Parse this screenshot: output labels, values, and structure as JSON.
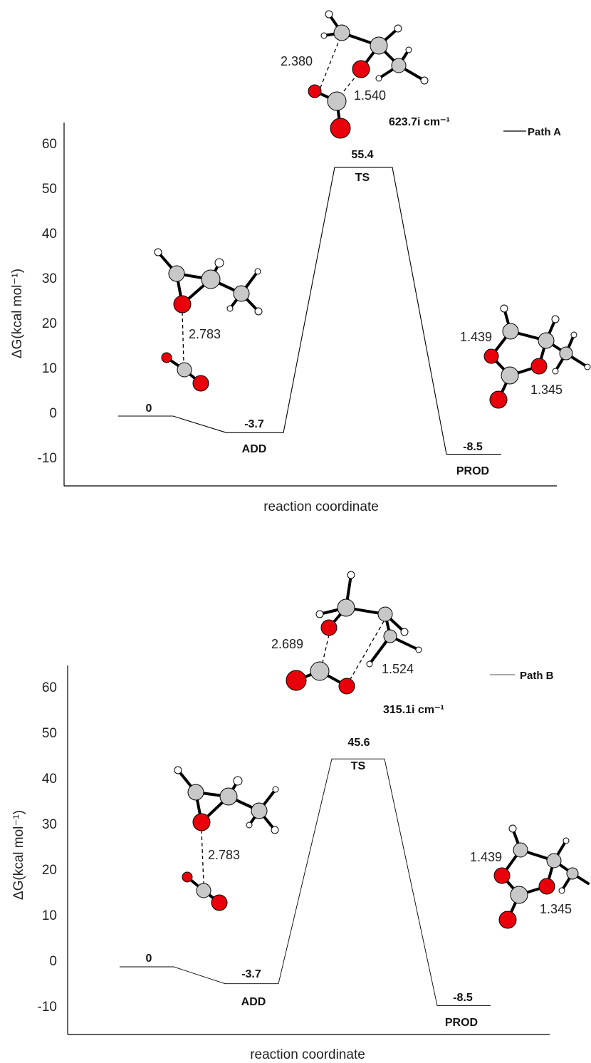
{
  "chart_data": [
    {
      "type": "line",
      "ylabel": "ΔG(kcal mol⁻¹)",
      "xlabel": "reaction coordinate",
      "ylim": [
        -15,
        65
      ],
      "yticks": [
        "60",
        "50",
        "40",
        "30",
        "20",
        "10",
        "0",
        "-10"
      ],
      "legend": "top-right",
      "series": [
        {
          "name": "Path A",
          "points": [
            {
              "label": "",
              "value": 0,
              "value_text": "0"
            },
            {
              "label": "ADD",
              "value": -3.7,
              "value_text": "-3.7"
            },
            {
              "label": "TS",
              "value": 55.4,
              "value_text": "55.4"
            },
            {
              "label": "PROD",
              "value": -8.5,
              "value_text": "-8.5"
            }
          ]
        }
      ],
      "annotations": {
        "ts_distances": [
          "2.380",
          "1.540"
        ],
        "ts_frequency": "623.7i cm⁻¹",
        "add_distance": "2.783",
        "prod_distances": [
          "1.439",
          "1.345"
        ]
      }
    },
    {
      "type": "line",
      "ylabel": "ΔG(kcal mol⁻¹)",
      "xlabel": "reaction coordinate",
      "ylim": [
        -15,
        65
      ],
      "yticks": [
        "60",
        "50",
        "40",
        "30",
        "20",
        "10",
        "0",
        "-10"
      ],
      "legend": "top-right",
      "series": [
        {
          "name": "Path B",
          "points": [
            {
              "label": "",
              "value": 0,
              "value_text": "0"
            },
            {
              "label": "ADD",
              "value": -3.7,
              "value_text": "-3.7"
            },
            {
              "label": "TS",
              "value": 45.6,
              "value_text": "45.6"
            },
            {
              "label": "PROD",
              "value": -8.5,
              "value_text": "-8.5"
            }
          ]
        }
      ],
      "annotations": {
        "ts_distances": [
          "2.689",
          "1.524"
        ],
        "ts_frequency": "315.1i cm⁻¹",
        "add_distance": "2.783",
        "prod_distances": [
          "1.439",
          "1.345"
        ]
      }
    }
  ],
  "colors": {
    "oxygen": "#e8000b",
    "carbon": "#c8c8c8",
    "hydrogen": "#ffffff",
    "line": "#000000"
  }
}
